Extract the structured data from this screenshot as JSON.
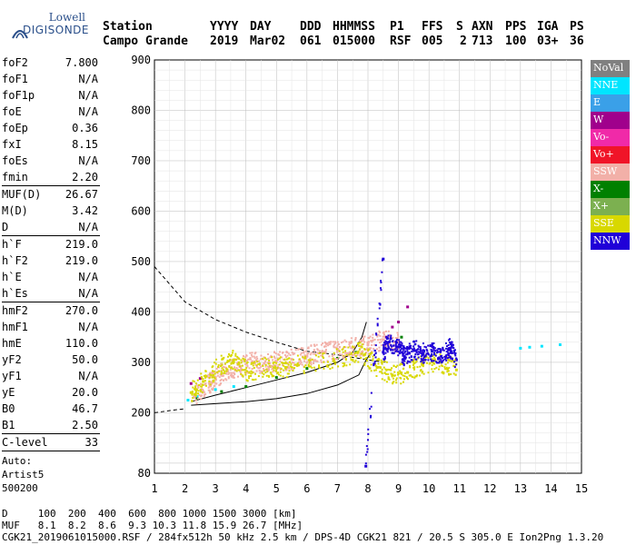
{
  "logo": {
    "line1": "Lowell",
    "line2": "DIGISONDE"
  },
  "header": {
    "labels": [
      "Station",
      "YYYY",
      "DAY",
      "DDD",
      "HHMMSS",
      "P1",
      "FFS",
      "S",
      "AXN",
      "PPS",
      "IGA",
      "PS"
    ],
    "values": [
      "Campo Grande",
      "2019",
      "Mar02",
      "061",
      "015000",
      "RSF",
      "005",
      "2",
      "713",
      "100",
      "03+",
      "36"
    ]
  },
  "params": {
    "group1": [
      {
        "k": "foF2",
        "v": "7.800"
      },
      {
        "k": "foF1",
        "v": "N/A"
      },
      {
        "k": "foF1p",
        "v": "N/A"
      },
      {
        "k": "foE",
        "v": "N/A"
      },
      {
        "k": "foEp",
        "v": "0.36"
      },
      {
        "k": "fxI",
        "v": "8.15"
      },
      {
        "k": "foEs",
        "v": "N/A"
      },
      {
        "k": "fmin",
        "v": "2.20"
      }
    ],
    "group2": [
      {
        "k": "MUF(D)",
        "v": "26.67"
      },
      {
        "k": "M(D)",
        "v": "3.42"
      },
      {
        "k": "D",
        "v": "N/A"
      }
    ],
    "group3": [
      {
        "k": "h`F",
        "v": "219.0"
      },
      {
        "k": "h`F2",
        "v": "219.0"
      },
      {
        "k": "h`E",
        "v": "N/A"
      },
      {
        "k": "h`Es",
        "v": "N/A"
      }
    ],
    "group4": [
      {
        "k": "hmF2",
        "v": "270.0"
      },
      {
        "k": "hmF1",
        "v": "N/A"
      },
      {
        "k": "hmE",
        "v": "110.0"
      },
      {
        "k": "yF2",
        "v": "50.0"
      },
      {
        "k": "yF1",
        "v": "N/A"
      },
      {
        "k": "yE",
        "v": "20.0"
      },
      {
        "k": "B0",
        "v": "46.7"
      },
      {
        "k": "B1",
        "v": "2.50"
      }
    ],
    "clevel": {
      "k": "C-level",
      "v": "33"
    },
    "auto": [
      "Auto:",
      "Artist5",
      "500200"
    ]
  },
  "legend": [
    {
      "label": "NoVal",
      "color": "#808080"
    },
    {
      "label": "NNE",
      "color": "#00e5ff"
    },
    {
      "label": "E",
      "color": "#3aa0e8"
    },
    {
      "label": "W",
      "color": "#a0008c"
    },
    {
      "label": "Vo-",
      "color": "#f02aa8"
    },
    {
      "label": "Vo+",
      "color": "#f01428"
    },
    {
      "label": "SSW",
      "color": "#f2b0a8"
    },
    {
      "label": "X-",
      "color": "#008000"
    },
    {
      "label": "X+",
      "color": "#7cb050"
    },
    {
      "label": "SSE",
      "color": "#d8d800"
    },
    {
      "label": "NNW",
      "color": "#2000d8"
    }
  ],
  "footer": {
    "line1": "D     100  200  400  600  800 1000 1500 3000 [km]",
    "line2": "MUF   8.1  8.2  8.6  9.3 10.3 11.8 15.9 26.7 [MHz]",
    "line3": "CGK21_2019061015000.RSF / 284fx512h 50 kHz 2.5 km / DPS-4D CGK21 821 / 20.5 S 305.0 E Ion2Png 1.3.20"
  },
  "chart_data": {
    "type": "scatter",
    "xlabel": "",
    "ylabel": "",
    "xlim": [
      1,
      15
    ],
    "ylim": [
      80,
      900
    ],
    "x_ticks": [
      "1",
      "2",
      "3",
      "4",
      "5",
      "6",
      "7",
      "8",
      "9",
      "10",
      "11",
      "12",
      "13",
      "14",
      "15"
    ],
    "y_ticks": [
      "80",
      "200",
      "300",
      "400",
      "500",
      "600",
      "700",
      "800",
      "900"
    ],
    "grid": true,
    "series": [
      {
        "name": "O-trace (SSW)",
        "color": "#f2b0a8",
        "points": [
          [
            2.3,
            232
          ],
          [
            2.8,
            258
          ],
          [
            3.0,
            270
          ],
          [
            3.4,
            282
          ],
          [
            3.8,
            292
          ],
          [
            4.2,
            300
          ],
          [
            4.6,
            298
          ],
          [
            5.0,
            302
          ],
          [
            5.5,
            306
          ],
          [
            6.0,
            312
          ],
          [
            6.5,
            320
          ],
          [
            7.0,
            326
          ],
          [
            7.5,
            330
          ],
          [
            8.0,
            335
          ],
          [
            8.5,
            345
          ],
          [
            9.0,
            340
          ]
        ]
      },
      {
        "name": "SSE",
        "color": "#d8d800",
        "points": [
          [
            2.2,
            240
          ],
          [
            2.6,
            262
          ],
          [
            3.2,
            296
          ],
          [
            3.6,
            305
          ],
          [
            4.1,
            280
          ],
          [
            4.8,
            292
          ],
          [
            5.3,
            290
          ],
          [
            6.1,
            300
          ],
          [
            7.2,
            312
          ],
          [
            7.8,
            320
          ],
          [
            8.3,
            290
          ],
          [
            8.8,
            275
          ],
          [
            9.3,
            280
          ],
          [
            9.8,
            295
          ],
          [
            10.4,
            300
          ],
          [
            10.9,
            285
          ]
        ]
      },
      {
        "name": "NNW",
        "color": "#2000d8",
        "points": [
          [
            8.5,
            320
          ],
          [
            8.7,
            340
          ],
          [
            9.0,
            330
          ],
          [
            9.2,
            310
          ],
          [
            9.5,
            325
          ],
          [
            9.8,
            318
          ],
          [
            10.1,
            322
          ],
          [
            10.4,
            312
          ],
          [
            10.7,
            328
          ],
          [
            10.9,
            305
          ],
          [
            8.5,
            505
          ],
          [
            7.93,
            94
          ]
        ]
      },
      {
        "name": "NNE",
        "color": "#00e5ff",
        "points": [
          [
            2.1,
            225
          ],
          [
            2.4,
            232
          ],
          [
            3.0,
            246
          ],
          [
            3.6,
            252
          ],
          [
            13.0,
            328
          ],
          [
            13.3,
            330
          ],
          [
            13.7,
            332
          ],
          [
            14.3,
            335
          ]
        ]
      },
      {
        "name": "X-",
        "color": "#008000",
        "points": [
          [
            2.4,
            228
          ],
          [
            3.2,
            242
          ],
          [
            4.0,
            252
          ],
          [
            5.0,
            270
          ],
          [
            6.0,
            288
          ],
          [
            7.0,
            308
          ],
          [
            7.6,
            320
          ],
          [
            9.1,
            350
          ]
        ]
      },
      {
        "name": "W",
        "color": "#a0008c",
        "points": [
          [
            2.2,
            258
          ],
          [
            2.5,
            268
          ],
          [
            8.6,
            350
          ],
          [
            8.8,
            370
          ],
          [
            9.0,
            380
          ],
          [
            9.3,
            410
          ]
        ]
      }
    ],
    "curves": [
      {
        "name": "profile-dashed",
        "style": "dashed",
        "points": [
          [
            1,
            490
          ],
          [
            2,
            420
          ],
          [
            3,
            385
          ],
          [
            4,
            360
          ],
          [
            5,
            340
          ],
          [
            6,
            322
          ],
          [
            7,
            315
          ],
          [
            8,
            305
          ],
          [
            8.6,
            300
          ]
        ]
      },
      {
        "name": "profile-solid",
        "style": "solid",
        "points": [
          [
            2.2,
            215
          ],
          [
            3,
            218
          ],
          [
            4,
            222
          ],
          [
            5,
            228
          ],
          [
            6,
            238
          ],
          [
            7,
            255
          ],
          [
            7.7,
            275
          ],
          [
            7.9,
            300
          ],
          [
            8.1,
            320
          ]
        ]
      },
      {
        "name": "trace-fit",
        "style": "solid",
        "points": [
          [
            2.2,
            222
          ],
          [
            3,
            235
          ],
          [
            4,
            250
          ],
          [
            5,
            265
          ],
          [
            6,
            280
          ],
          [
            7,
            300
          ],
          [
            7.5,
            320
          ],
          [
            7.8,
            350
          ],
          [
            7.95,
            380
          ]
        ]
      },
      {
        "name": "ground-dashed",
        "style": "dashed",
        "points": [
          [
            1,
            200
          ],
          [
            1.6,
            205
          ],
          [
            2,
            208
          ]
        ]
      }
    ]
  }
}
